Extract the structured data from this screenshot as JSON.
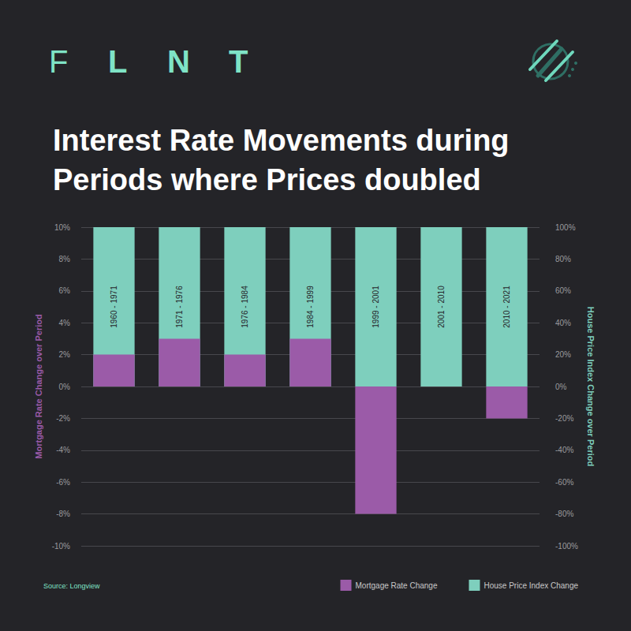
{
  "chart_data": {
    "type": "bar",
    "brand": "FLNT",
    "title": "Interest Rate Movements during Periods where Prices doubled",
    "source": "Source: Longview",
    "categories": [
      "1960 - 1971",
      "1971 - 1976",
      "1976 - 1984",
      "1984 - 1999",
      "1999 - 2001",
      "2001 - 2010",
      "2010 - 2021"
    ],
    "series": [
      {
        "name": "Mortgage Rate Change",
        "color": "#9b5ba8",
        "values": [
          2,
          3,
          2,
          3,
          -8,
          0,
          -2
        ]
      },
      {
        "name": "House Price Index Change",
        "color": "#7ecfbd",
        "axis": "y2",
        "values": [
          100,
          100,
          100,
          100,
          100,
          100,
          100
        ]
      }
    ],
    "ylabel": "Mortgage Rate Change over Period",
    "y2label": "House Price Index Change over Period",
    "ylim": [
      -10,
      10
    ],
    "yticks": [
      {
        "value": -10,
        "label": "-10%"
      },
      {
        "value": -8,
        "label": "-8%"
      },
      {
        "value": -6,
        "label": "-6%"
      },
      {
        "value": -4,
        "label": "-4%"
      },
      {
        "value": -2,
        "label": "-2%"
      },
      {
        "value": 0,
        "label": "0%"
      },
      {
        "value": 2,
        "label": "2%"
      },
      {
        "value": 4,
        "label": "4%"
      },
      {
        "value": 6,
        "label": "6%"
      },
      {
        "value": 8,
        "label": "8%"
      },
      {
        "value": 10,
        "label": "10%"
      }
    ],
    "y2lim": [
      -100,
      100
    ],
    "y2ticks": [
      {
        "value": -100,
        "label": "-100%"
      },
      {
        "value": -80,
        "label": "-80%"
      },
      {
        "value": -60,
        "label": "-60%"
      },
      {
        "value": -40,
        "label": "-40%"
      },
      {
        "value": -20,
        "label": "-20%"
      },
      {
        "value": 0,
        "label": "0%"
      },
      {
        "value": 20,
        "label": "20%"
      },
      {
        "value": 40,
        "label": "40%"
      },
      {
        "value": 60,
        "label": "60%"
      },
      {
        "value": 80,
        "label": "80%"
      },
      {
        "value": 100,
        "label": "100%"
      }
    ],
    "grid": true,
    "legend": "lower right"
  }
}
